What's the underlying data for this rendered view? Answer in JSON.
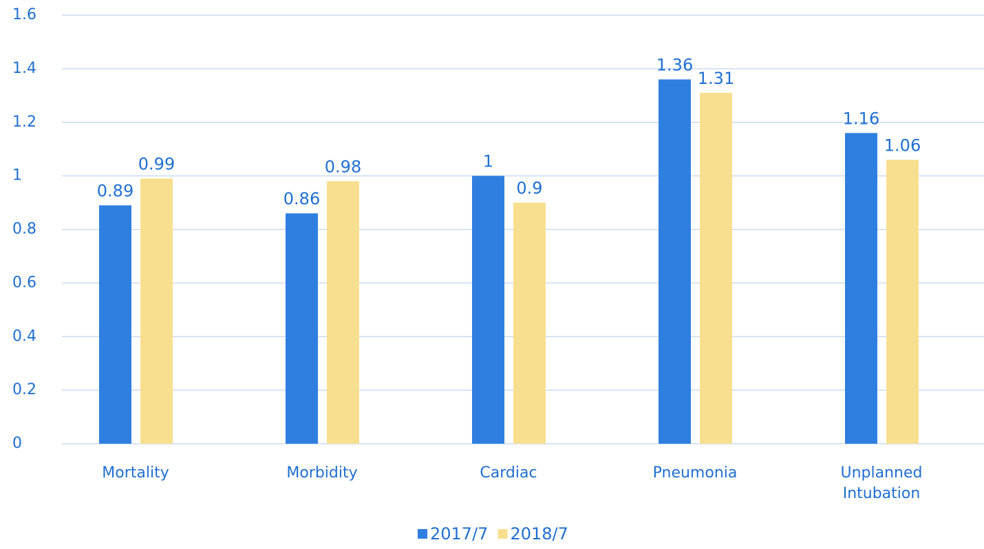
{
  "chart_data": {
    "type": "bar",
    "categories": [
      "Mortality",
      "Morbidity",
      "Cardiac",
      "Pneumonia",
      "Unplanned Intubation"
    ],
    "series": [
      {
        "name": "2017/7",
        "color": "#2f7fe0",
        "values": [
          0.89,
          0.86,
          1,
          1.36,
          1.16
        ]
      },
      {
        "name": "2018/7",
        "color": "#f8df8f",
        "values": [
          0.99,
          0.98,
          0.9,
          1.31,
          1.06
        ]
      }
    ],
    "ylim": [
      0,
      1.6
    ],
    "yticks": [
      0,
      0.2,
      0.4,
      0.6,
      0.8,
      1,
      1.2,
      1.4,
      1.6
    ],
    "grid": true,
    "legend": "bottom"
  }
}
